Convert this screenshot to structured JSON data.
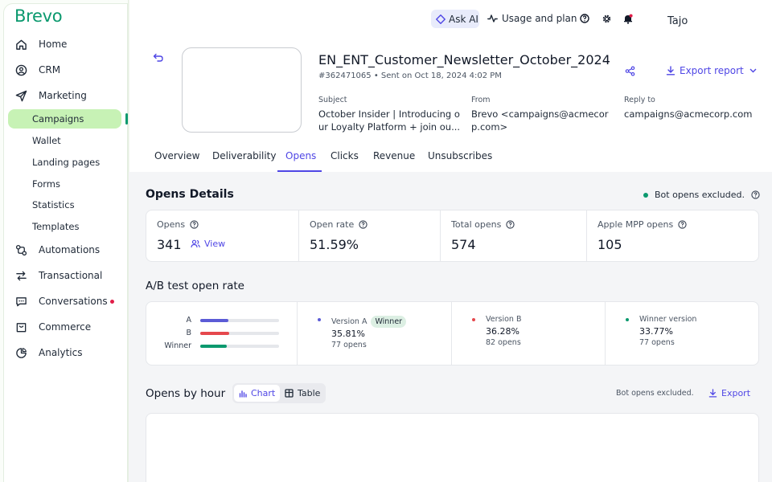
{
  "brand": {
    "logo_text": "Brevo",
    "accent": "#0b996e",
    "link_color": "#4f46e5"
  },
  "sidebar": {
    "items": [
      {
        "label": "Home",
        "icon": "home-icon"
      },
      {
        "label": "CRM",
        "icon": "contacts-icon"
      },
      {
        "label": "Marketing",
        "icon": "send-icon"
      },
      {
        "label": "Automations",
        "icon": "automation-icon"
      },
      {
        "label": "Transactional",
        "icon": "transactional-icon"
      },
      {
        "label": "Conversations",
        "icon": "chat-icon"
      },
      {
        "label": "Commerce",
        "icon": "commerce-icon"
      },
      {
        "label": "Analytics",
        "icon": "analytics-icon"
      }
    ],
    "marketing_sub": [
      "Campaigns",
      "Wallet",
      "Landing pages",
      "Forms",
      "Statistics",
      "Templates"
    ],
    "active_sub": "Campaigns"
  },
  "topbar": {
    "ask_ai": "Ask AI",
    "usage": "Usage and plan",
    "username": "Tajo"
  },
  "campaign": {
    "title": "EN_ENT_Customer_Newsletter_October_2024",
    "meta": "#362471065 • Sent on Oct 18, 2024 4:02 PM",
    "export_report": "Export report",
    "subject_label": "Subject",
    "subject_line1": "October Insider | Introducing o",
    "subject_line2": "ur Loyalty Platform + join ou...",
    "from_label": "From",
    "from_line1": "Brevo <campaigns@acmecor",
    "from_line2": "p.com>",
    "reply_label": "Reply to",
    "reply_value": "campaigns@acmecorp.com"
  },
  "tabs": [
    "Overview",
    "Deliverability",
    "Opens",
    "Clicks",
    "Revenue",
    "Unsubscribes"
  ],
  "active_tab": "Opens",
  "opens_details": {
    "title": "Opens Details",
    "bot_note": "Bot opens excluded.",
    "stats": [
      {
        "label": "Opens",
        "value": "341"
      },
      {
        "label": "Open rate",
        "value": "51.59%"
      },
      {
        "label": "Total opens",
        "value": "574"
      },
      {
        "label": "Apple MPP opens",
        "value": "105"
      }
    ],
    "view_link": "View"
  },
  "ab_test": {
    "title": "A/B test open rate",
    "bars": [
      {
        "label": "A",
        "fraction": 0.3581,
        "color": "#5b5bd6"
      },
      {
        "label": "B",
        "fraction": 0.3628,
        "color": "#e5484d"
      },
      {
        "label": "Winner",
        "fraction": 0.3377,
        "color": "#0b996e"
      }
    ],
    "versions": [
      {
        "name": "Version A",
        "badge": "Winner",
        "pct": "35.81%",
        "opens": "77 opens",
        "color": "#5b5bd6"
      },
      {
        "name": "Version B",
        "badge": "",
        "pct": "36.28%",
        "opens": "82 opens",
        "color": "#e5484d"
      },
      {
        "name": "Winner version",
        "badge": "",
        "pct": "33.77%",
        "opens": "77 opens",
        "color": "#0b996e"
      }
    ]
  },
  "opens_by_hour": {
    "title": "Opens by hour",
    "toggle_chart": "Chart",
    "toggle_table": "Table",
    "bot_note": "Bot opens excluded.",
    "export": "Export"
  }
}
